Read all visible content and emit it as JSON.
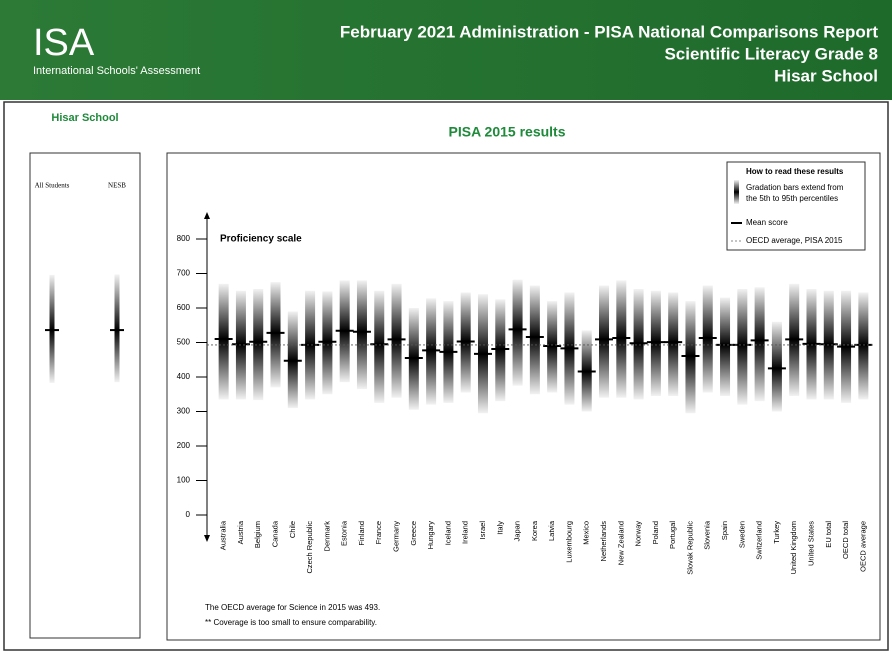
{
  "header": {
    "logo": "ISA",
    "logo_subtitle": "International Schools' Assessment",
    "title_lines": [
      "February 2021 Administration - PISA National Comparisons Report",
      "Scientific Literacy Grade 8",
      "Hisar School"
    ]
  },
  "school": "Hisar School",
  "chart_data": [
    {
      "type": "gradation",
      "categories": [
        "All Students",
        "NESB"
      ],
      "low": [
        383,
        385
      ],
      "mean": [
        536,
        536
      ],
      "high": [
        696,
        697
      ],
      "ylim": [
        0,
        800
      ]
    },
    {
      "type": "gradation",
      "title": "PISA 2015 results",
      "y_label": "Proficiency scale",
      "categories": [
        "Australia",
        "Austria",
        "Belgium",
        "Canada",
        "Chile",
        "Czech Republic",
        "Denmark",
        "Estonia",
        "Finland",
        "France",
        "Germany",
        "Greece",
        "Hungary",
        "Iceland",
        "Ireland",
        "Israel",
        "Italy",
        "Japan",
        "Korea",
        "Latvia",
        "Luxembourg",
        "Mexico",
        "Netherlands",
        "New Zealand",
        "Norway",
        "Poland",
        "Portugal",
        "Slovak Republic",
        "Slovenia",
        "Spain",
        "Sweden",
        "Switzerland",
        "Turkey",
        "United Kingdom",
        "United States",
        "EU total",
        "OECD total",
        "OECD average"
      ],
      "low": [
        335,
        335,
        333,
        370,
        310,
        335,
        350,
        385,
        365,
        325,
        340,
        305,
        320,
        325,
        355,
        295,
        330,
        375,
        350,
        355,
        320,
        300,
        340,
        340,
        335,
        345,
        345,
        295,
        355,
        345,
        320,
        330,
        300,
        345,
        335,
        335,
        325,
        335
      ],
      "mean": [
        510,
        495,
        502,
        528,
        447,
        493,
        502,
        534,
        531,
        495,
        509,
        455,
        477,
        473,
        503,
        467,
        481,
        538,
        516,
        490,
        483,
        416,
        509,
        513,
        498,
        501,
        501,
        461,
        513,
        493,
        493,
        506,
        425,
        509,
        496,
        495,
        488,
        493
      ],
      "high": [
        670,
        650,
        655,
        675,
        590,
        650,
        648,
        680,
        680,
        650,
        670,
        600,
        628,
        620,
        645,
        640,
        625,
        682,
        665,
        620,
        645,
        535,
        665,
        680,
        655,
        650,
        645,
        620,
        665,
        630,
        655,
        660,
        560,
        670,
        655,
        650,
        650,
        645
      ],
      "oecd_average": 493,
      "ylim": [
        0,
        800
      ],
      "yticks": [
        0,
        100,
        200,
        300,
        400,
        500,
        600,
        700,
        800
      ],
      "legend": {
        "title": "How to read these results",
        "gradation": "Gradation bars extend from the 5th to 95th percentiles",
        "mean": "Mean score",
        "oecd": "OECD average, PISA 2015"
      },
      "notes": [
        "The OECD average for Science in 2015 was 493.",
        "** Coverage is too small to ensure comparability."
      ]
    }
  ]
}
